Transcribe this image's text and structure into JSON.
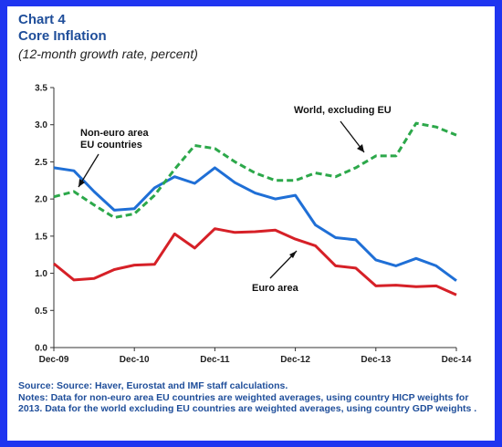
{
  "header": {
    "title_line1": "Chart 4",
    "title_line2": "Core Inflation",
    "subtitle": "(12-month growth rate, percent)"
  },
  "chart_data": {
    "type": "line",
    "x": [
      "Dec-09",
      "Mar-10",
      "Jun-10",
      "Sep-10",
      "Dec-10",
      "Mar-11",
      "Jun-11",
      "Sep-11",
      "Dec-11",
      "Mar-12",
      "Jun-12",
      "Sep-12",
      "Dec-12",
      "Mar-13",
      "Jun-13",
      "Sep-13",
      "Dec-13",
      "Mar-14",
      "Jun-14",
      "Sep-14",
      "Dec-14"
    ],
    "x_tick_labels": [
      "Dec-09",
      "Dec-10",
      "Dec-11",
      "Dec-12",
      "Dec-13",
      "Dec-14"
    ],
    "ylim": [
      0.0,
      3.5
    ],
    "y_ticks": [
      "0.0",
      "0.5",
      "1.0",
      "1.5",
      "2.0",
      "2.5",
      "3.0",
      "3.5"
    ],
    "series": [
      {
        "name": "Non-euro area EU countries",
        "color": "#1f6fd6",
        "style": "solid",
        "values": [
          2.42,
          2.38,
          2.1,
          1.85,
          1.87,
          2.15,
          2.3,
          2.21,
          2.42,
          2.22,
          2.08,
          2.0,
          2.05,
          1.65,
          1.48,
          1.45,
          1.18,
          1.1,
          1.2,
          1.1,
          0.9
        ]
      },
      {
        "name": "World, excluding EU",
        "color": "#2ca84a",
        "style": "dashed",
        "values": [
          2.03,
          2.1,
          1.92,
          1.75,
          1.8,
          2.05,
          2.4,
          2.72,
          2.68,
          2.5,
          2.35,
          2.25,
          2.25,
          2.35,
          2.3,
          2.42,
          2.58,
          2.58,
          3.02,
          2.97,
          2.86
        ]
      },
      {
        "name": "Euro area",
        "color": "#d62027",
        "style": "solid",
        "values": [
          1.13,
          0.91,
          0.93,
          1.05,
          1.11,
          1.12,
          1.53,
          1.34,
          1.6,
          1.55,
          1.56,
          1.58,
          1.46,
          1.37,
          1.1,
          1.07,
          0.83,
          0.84,
          0.82,
          0.83,
          0.71
        ]
      }
    ]
  },
  "footer": {
    "source": "Source: Source: Haver, Eurostat and IMF staff calculations.",
    "notes": "Notes:  Data for non-euro area EU countries are weighted averages, using country HICP weights for 2013. Data for the world excluding EU countries are weighted averages, using country GDP weights ."
  }
}
